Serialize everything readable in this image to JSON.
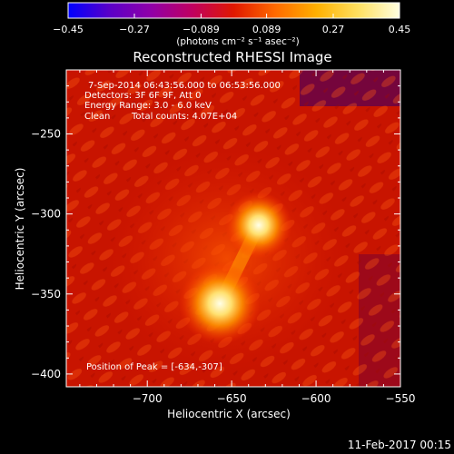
{
  "chart_data": {
    "type": "heatmap",
    "title": "Reconstructed RHESSI Image",
    "xlabel": "Heliocentric X (arcsec)",
    "ylabel": "Heliocentric Y (arcsec)",
    "xlim": [
      -748,
      -550
    ],
    "ylim": [
      -408,
      -210
    ],
    "x_ticks": [
      -700,
      -650,
      -600,
      -550
    ],
    "x_tick_labels": [
      "−700",
      "−650",
      "−600",
      "−550"
    ],
    "y_ticks": [
      -250,
      -300,
      -350,
      -400
    ],
    "y_tick_labels": [
      "−250",
      "−300",
      "−350",
      "−400"
    ],
    "colorbar": {
      "min": -0.45,
      "max": 0.45,
      "ticks": [
        -0.45,
        -0.27,
        -0.089,
        0.089,
        0.27,
        0.45
      ],
      "tick_labels": [
        "−0.45",
        "−0.27",
        "−0.089",
        "0.089",
        "0.27",
        "0.45"
      ],
      "units_label": "(photons cm⁻² s⁻¹ asec⁻²)",
      "colors": [
        "#0000ff",
        "#5a00c8",
        "#9000a8",
        "#c00060",
        "#e01800",
        "#ff6a00",
        "#ffb000",
        "#ffe060",
        "#ffffe0"
      ]
    },
    "sources": [
      {
        "x": -634,
        "y": -307,
        "radius": 9
      },
      {
        "x": -657,
        "y": -356,
        "radius": 11
      }
    ],
    "annotations": [
      "7-Sep-2014 06:43:56.000 to 06:53:56.000",
      "Detectors: 3F 6F 9F, Att 0",
      "Energy Range: 3.0 - 6.0 keV",
      "Clean",
      "Total counts: 4.07E+04"
    ],
    "peak_label": "Position of Peak = [-634,-307]"
  },
  "footer": {
    "timestamp": "11-Feb-2017 00:15"
  }
}
